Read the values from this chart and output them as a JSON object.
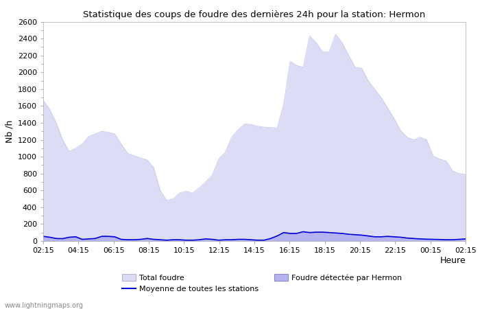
{
  "title": "Statistique des coups de foudre des dernières 24h pour la station: Hermon",
  "xlabel": "Heure",
  "ylabel": "Nb /h",
  "ylim": [
    0,
    2600
  ],
  "yticks": [
    0,
    200,
    400,
    600,
    800,
    1000,
    1200,
    1400,
    1600,
    1800,
    2000,
    2200,
    2400,
    2600
  ],
  "xtick_labels": [
    "02:15",
    "04:15",
    "06:15",
    "08:15",
    "10:15",
    "12:15",
    "14:15",
    "16:15",
    "18:15",
    "20:15",
    "22:15",
    "00:15",
    "02:15"
  ],
  "background_color": "#ffffff",
  "total_foudre_fill": "#dcdcf5",
  "hermon_fill": "#b0b0e8",
  "moyenne_color": "#0000dd",
  "watermark": "www.lightningmaps.org",
  "total_foudre_values": [
    1670,
    1560,
    1400,
    1200,
    1060,
    1100,
    1150,
    1240,
    1270,
    1300,
    1290,
    1270,
    1150,
    1040,
    1010,
    985,
    960,
    870,
    600,
    480,
    500,
    570,
    590,
    570,
    630,
    700,
    780,
    970,
    1050,
    1230,
    1320,
    1390,
    1380,
    1360,
    1350,
    1345,
    1340,
    1620,
    2130,
    2080,
    2060,
    2430,
    2350,
    2240,
    2240,
    2450,
    2350,
    2200,
    2060,
    2050,
    1900,
    1800,
    1700,
    1580,
    1450,
    1310,
    1230,
    1200,
    1230,
    1200,
    1010,
    970,
    950,
    830,
    800,
    790
  ],
  "hermon_values": [
    55,
    45,
    30,
    28,
    45,
    50,
    20,
    25,
    30,
    55,
    55,
    50,
    20,
    15,
    15,
    20,
    30,
    20,
    15,
    10,
    15,
    15,
    10,
    10,
    15,
    25,
    20,
    10,
    15,
    15,
    20,
    20,
    15,
    10,
    10,
    30,
    60,
    100,
    90,
    90,
    110,
    100,
    105,
    105,
    100,
    95,
    90,
    80,
    75,
    70,
    60,
    50,
    50,
    55,
    50,
    45,
    35,
    30,
    25,
    22,
    20,
    18,
    15,
    15,
    20,
    25
  ],
  "moyenne_values": [
    55,
    45,
    30,
    28,
    45,
    50,
    20,
    25,
    30,
    55,
    55,
    50,
    20,
    15,
    15,
    20,
    30,
    20,
    15,
    10,
    15,
    15,
    10,
    10,
    15,
    25,
    20,
    10,
    15,
    15,
    20,
    20,
    15,
    10,
    10,
    30,
    60,
    100,
    90,
    90,
    110,
    100,
    105,
    105,
    100,
    95,
    90,
    80,
    75,
    70,
    60,
    50,
    50,
    55,
    50,
    45,
    35,
    30,
    25,
    22,
    20,
    18,
    15,
    15,
    20,
    25
  ]
}
